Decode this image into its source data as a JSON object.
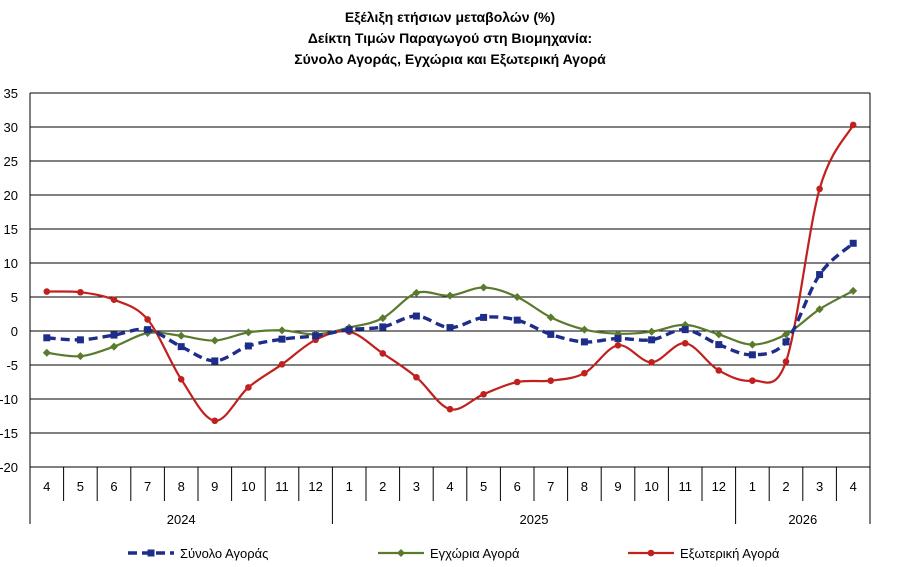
{
  "chart_data": {
    "type": "line",
    "title_lines": [
      "Εξέλιξη ετήσιων μεταβολών (%)",
      "Δείκτη Τιμών Παραγωγού στη Βιομηχανία:",
      "Σύνολο Αγοράς, Εγχώρια και Εξωτερική Αγορά"
    ],
    "xlabel": "",
    "ylabel": "",
    "ylim": [
      -20,
      35
    ],
    "y_ticks": [
      -20,
      -15,
      -10,
      -5,
      0,
      5,
      10,
      15,
      20,
      25,
      30,
      35
    ],
    "grid": "horizontal",
    "legend_position": "bottom",
    "categories": [
      "4",
      "5",
      "6",
      "7",
      "8",
      "9",
      "10",
      "11",
      "12",
      "1",
      "2",
      "3",
      "4",
      "5",
      "6",
      "7",
      "8",
      "9",
      "10",
      "11",
      "12",
      "1",
      "2",
      "3",
      "4"
    ],
    "year_groups": [
      {
        "label": "2024",
        "start": 0,
        "count": 9
      },
      {
        "label": "2025",
        "start": 9,
        "count": 12
      },
      {
        "label": "2026",
        "start": 21,
        "count": 4
      }
    ],
    "series": [
      {
        "name": "Σύνολο Αγοράς",
        "color": "#1f2d8a",
        "style": "dashed",
        "marker": "square",
        "values": [
          -1.0,
          -1.3,
          -0.6,
          0.2,
          -2.3,
          -4.4,
          -2.2,
          -1.2,
          -0.7,
          0.2,
          0.6,
          2.2,
          0.5,
          2.0,
          1.6,
          -0.5,
          -1.6,
          -1.1,
          -1.3,
          0.2,
          -2.0,
          -3.5,
          -1.6,
          8.3,
          12.9
        ]
      },
      {
        "name": "Εγχώρια Αγορά",
        "color": "#5a7a2e",
        "style": "solid",
        "marker": "diamond",
        "values": [
          -3.2,
          -3.7,
          -2.3,
          -0.3,
          -0.7,
          -1.4,
          -0.2,
          0.1,
          -0.5,
          0.5,
          1.9,
          5.6,
          5.2,
          6.4,
          5.0,
          2.0,
          0.2,
          -0.4,
          -0.1,
          0.9,
          -0.5,
          -2.0,
          -0.5,
          3.2,
          5.9
        ]
      },
      {
        "name": "Εξωτερική Αγορά",
        "color": "#c0201e",
        "style": "solid",
        "marker": "circle",
        "values": [
          5.8,
          5.7,
          4.6,
          1.7,
          -7.1,
          -13.2,
          -8.3,
          -4.9,
          -1.3,
          -0.1,
          -3.3,
          -6.8,
          -11.5,
          -9.3,
          -7.5,
          -7.3,
          -6.2,
          -2.1,
          -4.6,
          -1.8,
          -5.8,
          -7.3,
          -4.5,
          20.9,
          30.3
        ]
      }
    ]
  }
}
